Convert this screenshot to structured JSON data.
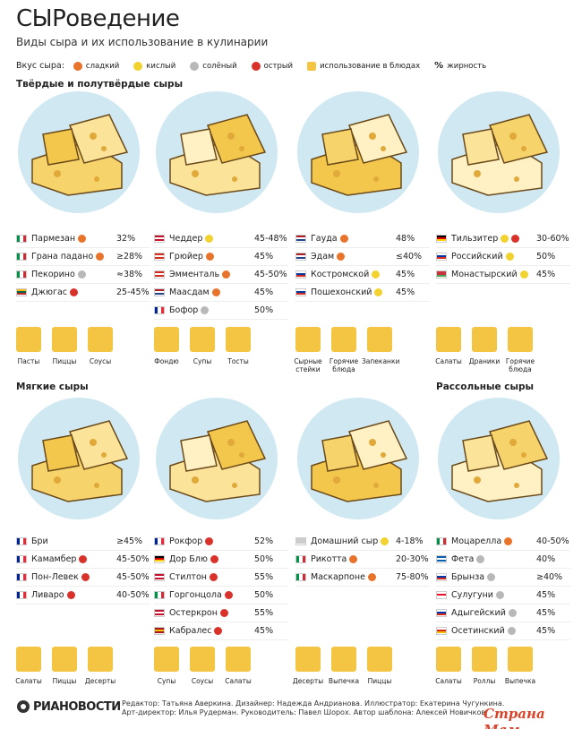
{
  "header": {
    "title": "СЫРоведение",
    "subtitle": "Виды сыра и их использование в кулинарии"
  },
  "legend": {
    "label": "Вкус сыра:",
    "items": [
      {
        "text": "сладкий",
        "color": "#e8732a"
      },
      {
        "text": "кислый",
        "color": "#f2d22e"
      },
      {
        "text": "солёный",
        "color": "#b8b8b8"
      },
      {
        "text": "острый",
        "color": "#d8322a"
      },
      {
        "text": "использование в блюдах",
        "color": "#f4c542"
      },
      {
        "text": "жирность",
        "symbol": "%"
      }
    ]
  },
  "groups": [
    {
      "heading": "Твёрдые и полутвёрдые сыры",
      "cheeses": [
        {
          "name": "Пармезан",
          "flag": {
            "dir": "v",
            "colors": [
              "#009246",
              "#ffffff",
              "#ce2b37"
            ]
          },
          "taste": [
            "#e8732a"
          ],
          "fat": "32%"
        },
        {
          "name": "Грана падано",
          "flag": {
            "dir": "v",
            "colors": [
              "#009246",
              "#ffffff",
              "#ce2b37"
            ]
          },
          "taste": [
            "#e8732a"
          ],
          "fat": "≥28%"
        },
        {
          "name": "Пекорино",
          "flag": {
            "dir": "v",
            "colors": [
              "#009246",
              "#ffffff",
              "#ce2b37"
            ]
          },
          "taste": [
            "#b8b8b8"
          ],
          "fat": "≈38%"
        },
        {
          "name": "Джюгас",
          "flag": {
            "dir": "h",
            "colors": [
              "#fdb913",
              "#006a44",
              "#c1272d"
            ]
          },
          "taste": [
            "#d8322a"
          ],
          "fat": "25-45%"
        }
      ],
      "uses": [
        "Пасты",
        "Пиццы",
        "Соусы"
      ]
    },
    {
      "cheeses": [
        {
          "name": "Чеддер",
          "flag": {
            "dir": "h",
            "colors": [
              "#c8102e",
              "#ffffff",
              "#c8102e"
            ]
          },
          "taste": [
            "#f2d22e"
          ],
          "fat": "45-48%"
        },
        {
          "name": "Грюйер",
          "flag": {
            "dir": "h",
            "colors": [
              "#d52b1e",
              "#ffffff",
              "#d52b1e"
            ]
          },
          "taste": [
            "#e8732a"
          ],
          "fat": "45%"
        },
        {
          "name": "Эмменталь",
          "flag": {
            "dir": "h",
            "colors": [
              "#d52b1e",
              "#ffffff",
              "#d52b1e"
            ]
          },
          "taste": [
            "#e8732a"
          ],
          "fat": "45-50%"
        },
        {
          "name": "Маасдам",
          "flag": {
            "dir": "h",
            "colors": [
              "#ae1c28",
              "#ffffff",
              "#21468b"
            ]
          },
          "taste": [
            "#e8732a"
          ],
          "fat": "45%"
        },
        {
          "name": "Бофор",
          "flag": {
            "dir": "v",
            "colors": [
              "#002395",
              "#ffffff",
              "#ed2939"
            ]
          },
          "taste": [
            "#b8b8b8"
          ],
          "fat": "50%"
        }
      ],
      "uses": [
        "Фондю",
        "Супы",
        "Тосты"
      ]
    },
    {
      "cheeses": [
        {
          "name": "Гауда",
          "flag": {
            "dir": "h",
            "colors": [
              "#ae1c28",
              "#ffffff",
              "#21468b"
            ]
          },
          "taste": [
            "#e8732a"
          ],
          "fat": "48%"
        },
        {
          "name": "Эдам",
          "flag": {
            "dir": "h",
            "colors": [
              "#ae1c28",
              "#ffffff",
              "#21468b"
            ]
          },
          "taste": [
            "#e8732a"
          ],
          "fat": "≤40%"
        },
        {
          "name": "Костромской",
          "flag": {
            "dir": "h",
            "colors": [
              "#ffffff",
              "#0039a6",
              "#d52b1e"
            ]
          },
          "taste": [
            "#f2d22e"
          ],
          "fat": "45%"
        },
        {
          "name": "Пошехонский",
          "flag": {
            "dir": "h",
            "colors": [
              "#ffffff",
              "#0039a6",
              "#d52b1e"
            ]
          },
          "taste": [
            "#f2d22e"
          ],
          "fat": "45%"
        }
      ],
      "uses": [
        "Сырные стейки",
        "Горячие блюда",
        "Запеканки"
      ]
    },
    {
      "cheeses": [
        {
          "name": "Тильзитер",
          "flag": {
            "dir": "h",
            "colors": [
              "#000000",
              "#dd0000",
              "#ffce00"
            ]
          },
          "taste": [
            "#f2d22e",
            "#d8322a"
          ],
          "fat": "30-60%"
        },
        {
          "name": "Российский",
          "flag": {
            "dir": "h",
            "colors": [
              "#ffffff",
              "#0039a6",
              "#d52b1e"
            ]
          },
          "taste": [
            "#f2d22e"
          ],
          "fat": "50%"
        },
        {
          "name": "Монастырский",
          "flag": {
            "dir": "h",
            "colors": [
              "#c8313e",
              "#c8313e",
              "#4aa657"
            ]
          },
          "taste": [
            "#f2d22e"
          ],
          "fat": "45%"
        }
      ],
      "uses": [
        "Салаты",
        "Драники",
        "Горячие блюда"
      ]
    },
    {
      "heading": "Мягкие сыры",
      "cheeses": [
        {
          "name": "Бри",
          "flag": {
            "dir": "v",
            "colors": [
              "#002395",
              "#ffffff",
              "#ed2939"
            ]
          },
          "taste": [],
          "fat": "≥45%"
        },
        {
          "name": "Камамбер",
          "flag": {
            "dir": "v",
            "colors": [
              "#002395",
              "#ffffff",
              "#ed2939"
            ]
          },
          "taste": [
            "#d8322a"
          ],
          "fat": "45-50%"
        },
        {
          "name": "Пон-Левек",
          "flag": {
            "dir": "v",
            "colors": [
              "#002395",
              "#ffffff",
              "#ed2939"
            ]
          },
          "taste": [
            "#d8322a"
          ],
          "fat": "45-50%"
        },
        {
          "name": "Ливаро",
          "flag": {
            "dir": "v",
            "colors": [
              "#002395",
              "#ffffff",
              "#ed2939"
            ]
          },
          "taste": [
            "#d8322a"
          ],
          "fat": "40-50%"
        }
      ],
      "uses": [
        "Салаты",
        "Пиццы",
        "Десерты"
      ]
    },
    {
      "cheeses": [
        {
          "name": "Рокфор",
          "flag": {
            "dir": "v",
            "colors": [
              "#002395",
              "#ffffff",
              "#ed2939"
            ]
          },
          "taste": [
            "#d8322a"
          ],
          "fat": "52%"
        },
        {
          "name": "Дор Блю",
          "flag": {
            "dir": "h",
            "colors": [
              "#000000",
              "#dd0000",
              "#ffce00"
            ]
          },
          "taste": [
            "#d8322a"
          ],
          "fat": "50%"
        },
        {
          "name": "Стилтон",
          "flag": {
            "dir": "h",
            "colors": [
              "#c8102e",
              "#ffffff",
              "#c8102e"
            ]
          },
          "taste": [
            "#d8322a"
          ],
          "fat": "55%"
        },
        {
          "name": "Горгонцола",
          "flag": {
            "dir": "v",
            "colors": [
              "#009246",
              "#ffffff",
              "#ce2b37"
            ]
          },
          "taste": [
            "#d8322a"
          ],
          "fat": "50%"
        },
        {
          "name": "Остеркрон",
          "flag": {
            "dir": "h",
            "colors": [
              "#c8102e",
              "#ffffff",
              "#c8102e"
            ]
          },
          "taste": [
            "#d8322a"
          ],
          "fat": "55%"
        },
        {
          "name": "Кабралес",
          "flag": {
            "dir": "h",
            "colors": [
              "#aa151b",
              "#f1bf00",
              "#aa151b"
            ]
          },
          "taste": [
            "#d8322a"
          ],
          "fat": "45%"
        }
      ],
      "uses": [
        "Супы",
        "Соусы",
        "Салаты"
      ]
    },
    {
      "cheeses": [
        {
          "name": "Домашний сыр",
          "flag": {
            "dir": "h",
            "colors": [
              "#cccccc",
              "#cccccc",
              "#cccccc"
            ]
          },
          "taste": [
            "#f2d22e"
          ],
          "fat": "4-18%"
        },
        {
          "name": "Рикотта",
          "flag": {
            "dir": "v",
            "colors": [
              "#009246",
              "#ffffff",
              "#ce2b37"
            ]
          },
          "taste": [
            "#e8732a"
          ],
          "fat": "20-30%"
        },
        {
          "name": "Маскарпоне",
          "flag": {
            "dir": "v",
            "colors": [
              "#009246",
              "#ffffff",
              "#ce2b37"
            ]
          },
          "taste": [
            "#e8732a"
          ],
          "fat": "75-80%"
        }
      ],
      "uses": [
        "Десерты",
        "Выпечка",
        "Пиццы"
      ]
    },
    {
      "heading": "Рассольные сыры",
      "cheeses": [
        {
          "name": "Моцарелла",
          "flag": {
            "dir": "v",
            "colors": [
              "#009246",
              "#ffffff",
              "#ce2b37"
            ]
          },
          "taste": [
            "#e8732a"
          ],
          "fat": "40-50%"
        },
        {
          "name": "Фета",
          "flag": {
            "dir": "h",
            "colors": [
              "#0d5eaf",
              "#ffffff",
              "#0d5eaf"
            ]
          },
          "taste": [
            "#b8b8b8"
          ],
          "fat": "40%"
        },
        {
          "name": "Брынза",
          "flag": {
            "dir": "h",
            "colors": [
              "#ffffff",
              "#0039a6",
              "#d52b1e"
            ]
          },
          "taste": [
            "#b8b8b8"
          ],
          "fat": "≥40%"
        },
        {
          "name": "Сулугуни",
          "flag": {
            "dir": "h",
            "colors": [
              "#ffffff",
              "#e8112d",
              "#ffffff"
            ]
          },
          "taste": [
            "#b8b8b8"
          ],
          "fat": "45%"
        },
        {
          "name": "Адыгейский",
          "flag": {
            "dir": "h",
            "colors": [
              "#ffffff",
              "#0039a6",
              "#d52b1e"
            ]
          },
          "taste": [
            "#b8b8b8"
          ],
          "fat": "45%"
        },
        {
          "name": "Осетинский",
          "flag": {
            "dir": "h",
            "colors": [
              "#ffffff",
              "#d52b1e",
              "#f1bf00"
            ]
          },
          "taste": [
            "#b8b8b8"
          ],
          "fat": "45%"
        }
      ],
      "uses": [
        "Салаты",
        "Роллы",
        "Выпечка"
      ]
    }
  ],
  "footer": {
    "logo": "РИАНОВОСТИ",
    "credits": [
      "Редактор: Татьяна Аверкина. Дизайнер: Надежда Андрианова. Иллюстратор: Екатерина Чугункина.",
      "Арт-директор: Илья Рудерман. Руководитель: Павел Шорох. Автор шаблона: Алексей Новичков."
    ],
    "watermark": "Страна Мам"
  }
}
